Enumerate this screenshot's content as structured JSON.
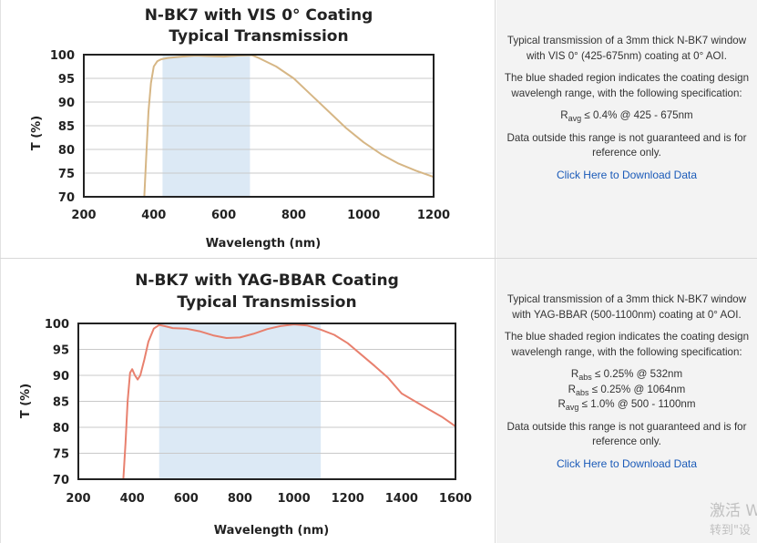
{
  "panels": [
    {
      "id": "vis",
      "chart_data": {
        "type": "line",
        "title": [
          "N-BK7 with VIS 0° Coating",
          "Typical Transmission"
        ],
        "xlabel": "Wavelength (nm)",
        "ylabel": "T (%)",
        "xlim": [
          200,
          1200
        ],
        "ylim": [
          70,
          100
        ],
        "xticks": [
          "200",
          "400",
          "600",
          "800",
          "1000",
          "1200"
        ],
        "yticks": [
          "100",
          "95",
          "90",
          "85",
          "80",
          "75",
          "70"
        ],
        "grid": true,
        "shaded_region": [
          425,
          675
        ],
        "series": [
          {
            "color": "#d6b685",
            "x": [
              373,
              378,
              385,
              392,
              400,
              410,
              420,
              440,
              480,
              520,
              560,
              600,
              640,
              680,
              700,
              750,
              800,
              850,
              900,
              950,
              1000,
              1050,
              1100,
              1150,
              1200
            ],
            "y": [
              70,
              78,
              88,
              94,
              97.5,
              98.6,
              99.0,
              99.3,
              99.6,
              99.8,
              99.7,
              99.6,
              99.8,
              99.9,
              99.3,
              97.5,
              95.0,
              91.5,
              88.0,
              84.5,
              81.5,
              79.0,
              77.0,
              75.5,
              74.2
            ]
          }
        ]
      },
      "description": "Typical transmission of a 3mm thick N-BK7 window with VIS 0° (425-675nm) coating at 0° AOI.",
      "region_note": "The blue shaded region indicates the coating design wavelengh range, with the following specification:",
      "specs": [
        {
          "symbol": "R",
          "sub": "avg",
          "text": "≤ 0.4% @ 425 - 675nm"
        }
      ],
      "disclaimer": "Data outside this range is not guaranteed and is for reference only.",
      "download_label": "Click Here to Download Data"
    },
    {
      "id": "yag",
      "chart_data": {
        "type": "line",
        "title": [
          "N-BK7 with YAG-BBAR Coating",
          "Typical Transmission"
        ],
        "xlabel": "Wavelength (nm)",
        "ylabel": "T (%)",
        "xlim": [
          200,
          1600
        ],
        "ylim": [
          70,
          100
        ],
        "xticks": [
          "200",
          "400",
          "600",
          "800",
          "1000",
          "1200",
          "1400",
          "1600"
        ],
        "yticks": [
          "100",
          "95",
          "90",
          "85",
          "80",
          "75",
          "70"
        ],
        "grid": true,
        "shaded_region": [
          500,
          1100
        ],
        "series": [
          {
            "color": "#e8806e",
            "x": [
              367,
              375,
              383,
              392,
              400,
              410,
              420,
              430,
              445,
              460,
              480,
              500,
              520,
              550,
              600,
              650,
              700,
              750,
              800,
              850,
              900,
              950,
              1000,
              1050,
              1100,
              1150,
              1200,
              1250,
              1300,
              1350,
              1400,
              1450,
              1500,
              1550,
              1600
            ],
            "y": [
              70,
              77,
              85,
              90.5,
              91.2,
              90.0,
              89.2,
              90.0,
              93.0,
              96.5,
              99.0,
              99.7,
              99.5,
              99.1,
              99.0,
              98.5,
              97.7,
              97.2,
              97.3,
              98.0,
              98.9,
              99.5,
              99.8,
              99.6,
              98.8,
              97.8,
              96.2,
              94.0,
              91.8,
              89.5,
              86.5,
              85.0,
              83.5,
              82.0,
              80.2
            ]
          }
        ]
      },
      "description": "Typical transmission of a 3mm thick N-BK7 window with YAG-BBAR (500-1100nm) coating at 0° AOI.",
      "region_note": "The blue shaded region indicates the coating design wavelengh range, with the following specification:",
      "specs": [
        {
          "symbol": "R",
          "sub": "abs",
          "text": "≤ 0.25% @ 532nm"
        },
        {
          "symbol": "R",
          "sub": "abs",
          "text": "≤ 0.25% @ 1064nm"
        },
        {
          "symbol": "R",
          "sub": "avg",
          "text": "≤ 1.0% @ 500 - 1100nm"
        }
      ],
      "disclaimer": "Data outside this range is not guaranteed and is for reference only.",
      "download_label": "Click Here to Download Data"
    }
  ],
  "watermark": {
    "line1": "激活 W",
    "line2": "转到\"设"
  },
  "colors": {
    "shade": "#dce9f5",
    "grid": "#c9c9c9",
    "link": "#1a5ab8"
  }
}
